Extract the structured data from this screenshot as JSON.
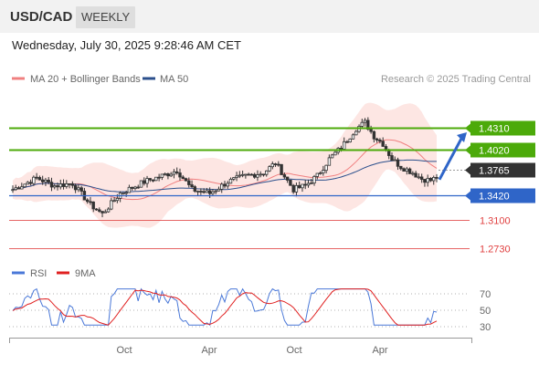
{
  "header": {
    "symbol": "USD/CAD",
    "period": "WEEKLY",
    "datetime": "Wednesday, July 30, 2025 9:28:46 AM CET"
  },
  "legend": {
    "ma20_label": "MA 20 + Bollinger Bands",
    "ma20_color": "#f08080",
    "ma50_label": "MA 50",
    "ma50_color": "#2b4f8c",
    "source": "Research © 2025 Trading Central"
  },
  "rsi_legend": {
    "rsi_label": "RSI",
    "rsi_color": "#4a78d8",
    "ma9_label": "9MA",
    "ma9_color": "#e02020"
  },
  "chart_data": {
    "type": "candlestick",
    "price_range": [
      1.255,
      1.455
    ],
    "levels": [
      {
        "label": "1.4310",
        "value": 1.431,
        "color": "#4caa0a",
        "kind": "resistance"
      },
      {
        "label": "1.4020",
        "value": 1.402,
        "color": "#4caa0a",
        "kind": "resistance"
      },
      {
        "label": "1.3765",
        "value": 1.3765,
        "color": "#333333",
        "kind": "last-price"
      },
      {
        "label": "1.3420",
        "value": 1.342,
        "color": "#2f65c8",
        "kind": "pivot"
      },
      {
        "label": "1.3100",
        "value": 1.31,
        "color": "#e04040",
        "kind": "support"
      },
      {
        "label": "1.2730",
        "value": 1.273,
        "color": "#e04040",
        "kind": "support"
      }
    ],
    "x_tick_labels": [
      "Oct",
      "Apr",
      "Oct",
      "Apr"
    ],
    "rsi_levels": [
      "70",
      "50",
      "30"
    ],
    "candle_count": 118,
    "trend_arrow": {
      "from": 1.363,
      "to": 1.425,
      "color": "#2f65c8"
    }
  }
}
